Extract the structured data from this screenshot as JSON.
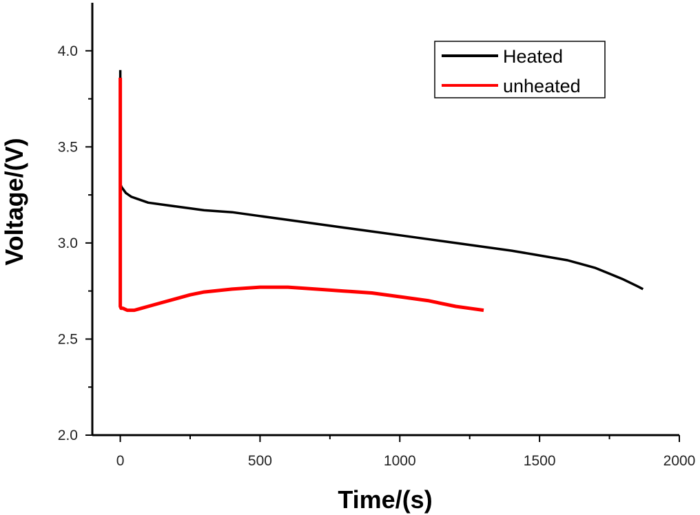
{
  "chart_data": {
    "type": "line",
    "title": "",
    "xlabel": "Time/(s)",
    "ylabel": "Voltage/(V)",
    "xlim": [
      -100,
      2000
    ],
    "ylim": [
      2.0,
      4.25
    ],
    "xticks": [
      0,
      500,
      1000,
      1500,
      2000
    ],
    "xtick_labels": [
      "0",
      "500",
      "1000",
      "1500",
      "2000"
    ],
    "yticks": [
      2.0,
      2.5,
      3.0,
      3.5,
      4.0
    ],
    "ytick_labels": [
      "2.0",
      "2.5",
      "3.0",
      "3.5",
      "4.0"
    ],
    "grid": false,
    "legend_position": "top-right",
    "series": [
      {
        "name": "Heated",
        "color": "#000000",
        "x": [
          0,
          0,
          2,
          5,
          10,
          20,
          40,
          60,
          100,
          150,
          200,
          300,
          400,
          500,
          600,
          700,
          800,
          900,
          1000,
          1100,
          1200,
          1300,
          1400,
          1500,
          1600,
          1650,
          1700,
          1750,
          1800,
          1850,
          1870
        ],
        "y": [
          3.9,
          3.31,
          3.3,
          3.29,
          3.28,
          3.26,
          3.24,
          3.23,
          3.21,
          3.2,
          3.19,
          3.17,
          3.16,
          3.14,
          3.12,
          3.1,
          3.08,
          3.06,
          3.04,
          3.02,
          3.0,
          2.98,
          2.96,
          2.935,
          2.91,
          2.89,
          2.87,
          2.84,
          2.81,
          2.775,
          2.76
        ]
      },
      {
        "name": "unheated",
        "color": "#ff0000",
        "x": [
          0,
          0,
          3,
          10,
          25,
          50,
          75,
          100,
          150,
          200,
          250,
          300,
          400,
          500,
          600,
          700,
          800,
          900,
          1000,
          1100,
          1200,
          1250,
          1300
        ],
        "y": [
          3.86,
          2.67,
          2.66,
          2.66,
          2.65,
          2.65,
          2.66,
          2.67,
          2.69,
          2.71,
          2.73,
          2.745,
          2.76,
          2.77,
          2.77,
          2.76,
          2.75,
          2.74,
          2.72,
          2.7,
          2.67,
          2.66,
          2.65
        ]
      }
    ]
  }
}
